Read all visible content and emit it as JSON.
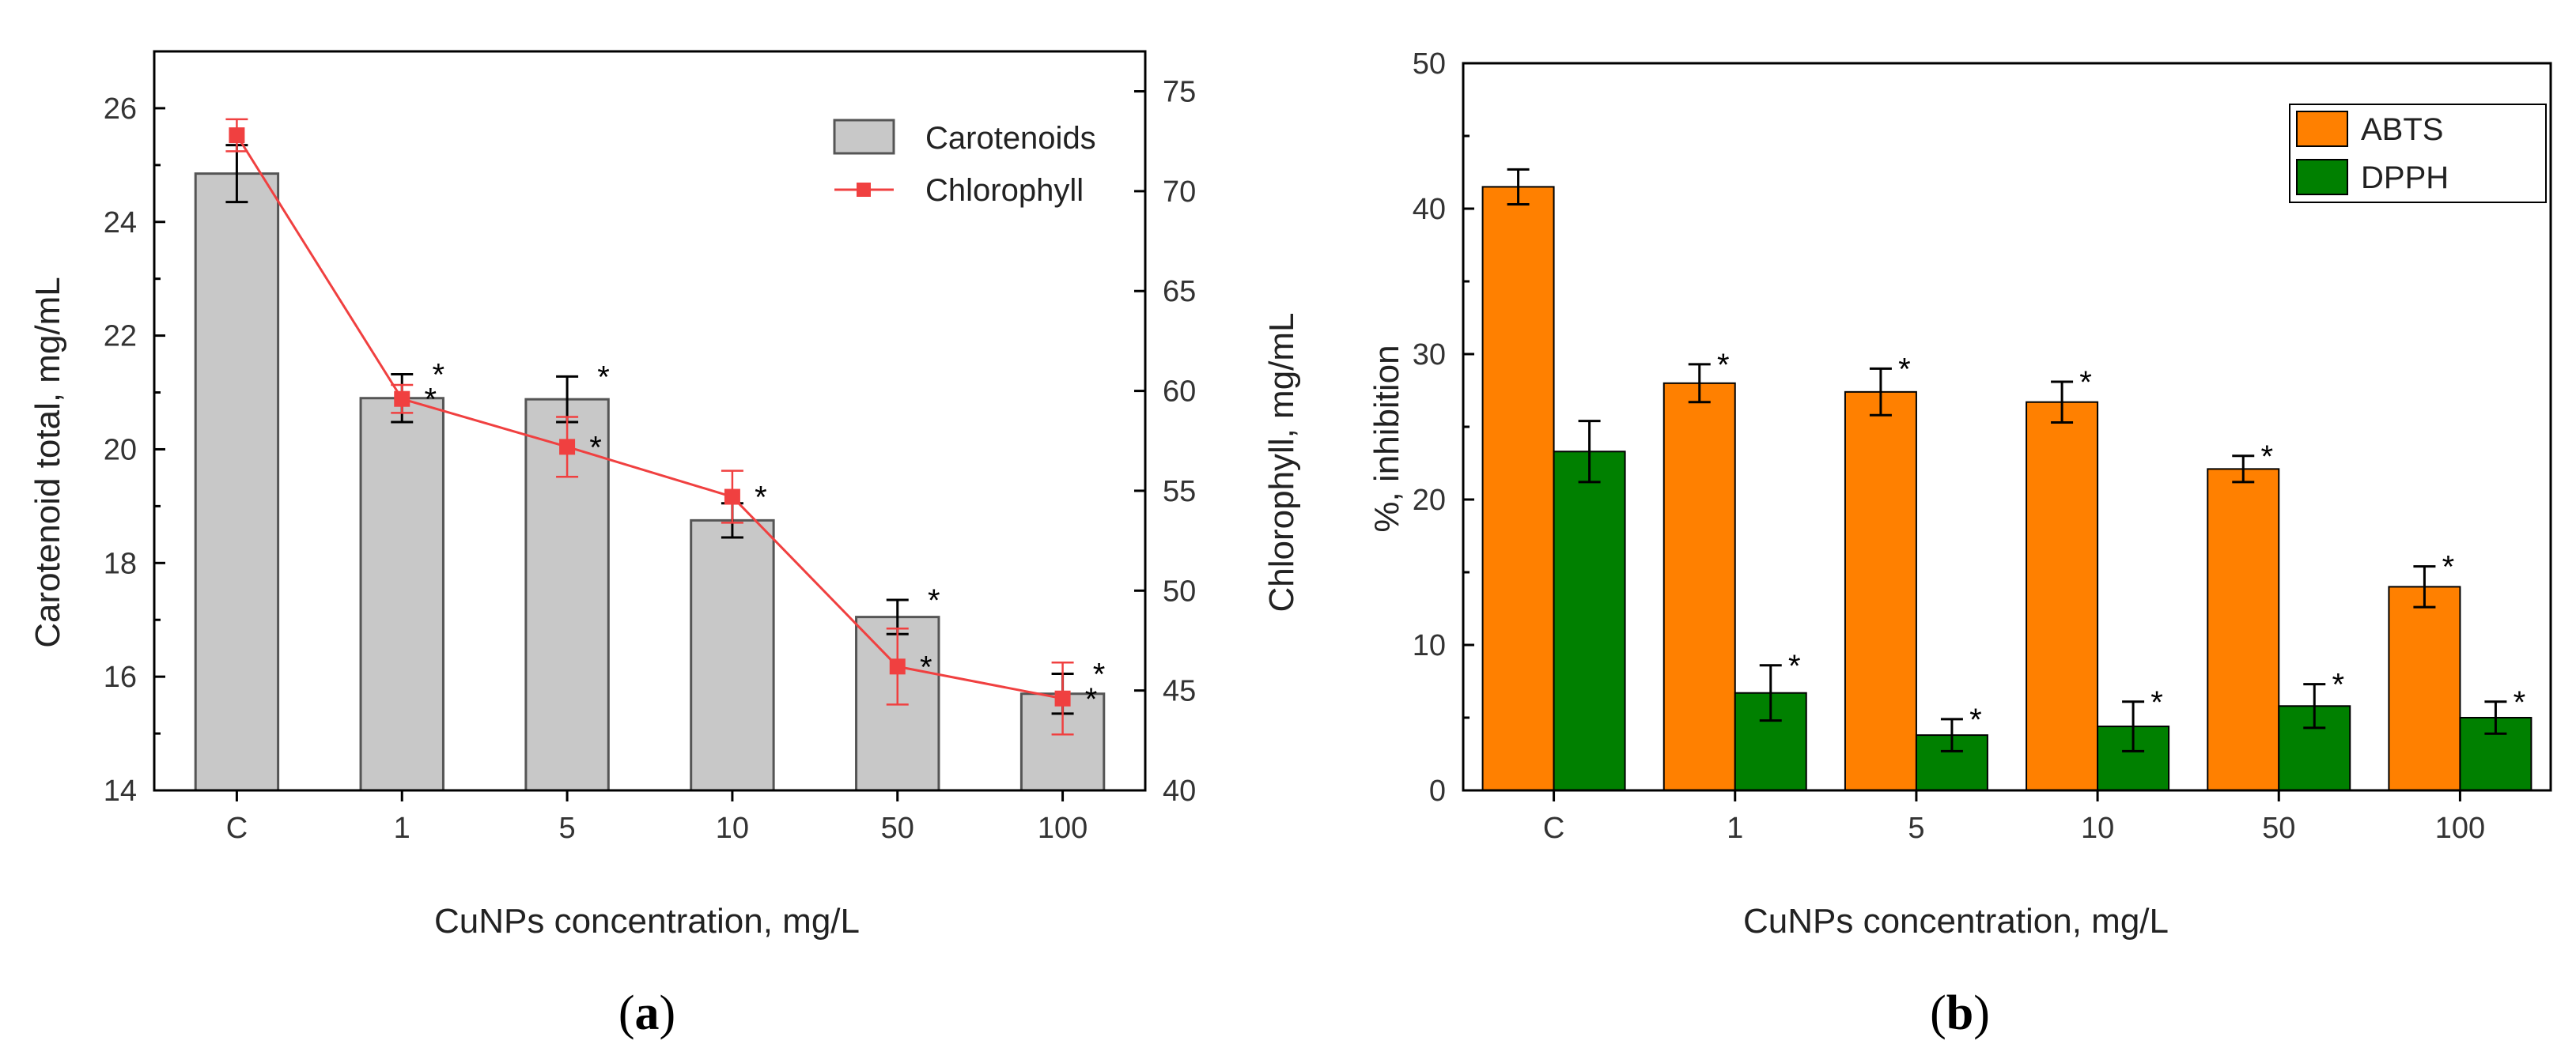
{
  "chart_data": [
    {
      "type": "bar",
      "panel": "a",
      "panel_label_open": "(",
      "panel_label_close": ")",
      "xlabel": "CuNPs concentration, mg/L",
      "ylabel_left": "Carotenoid total, mg/mL",
      "ylabel_right": "Chlorophyll, mg/mL",
      "categories": [
        "C",
        "1",
        "5",
        "10",
        "50",
        "100"
      ],
      "ylim_left": [
        14,
        27
      ],
      "yticks_left": [
        14,
        16,
        18,
        20,
        22,
        24,
        26
      ],
      "ylim_right": [
        40,
        77
      ],
      "yticks_right": [
        40,
        45,
        50,
        55,
        60,
        65,
        70,
        75
      ],
      "legend_position": "top-right",
      "series": [
        {
          "name": "Carotenoids",
          "kind": "bar",
          "axis": "left",
          "color": "#c8c8c8",
          "values": [
            24.85,
            20.9,
            20.88,
            18.75,
            17.05,
            15.7
          ],
          "errors": [
            0.5,
            0.42,
            0.4,
            0.3,
            0.3,
            0.35
          ],
          "significance": [
            "",
            "*",
            "*",
            "",
            "*",
            "*"
          ]
        },
        {
          "name": "Chlorophyll",
          "kind": "line",
          "axis": "right",
          "color": "#f04040",
          "values": [
            72.8,
            59.6,
            57.2,
            54.7,
            46.2,
            44.6
          ],
          "errors": [
            0.8,
            0.7,
            1.5,
            1.3,
            1.9,
            1.8
          ],
          "significance": [
            "",
            "*",
            "*",
            "*",
            "*",
            "*"
          ]
        }
      ]
    },
    {
      "type": "bar",
      "panel": "b",
      "panel_label_open": "(",
      "panel_label_close": ")",
      "xlabel": "CuNPs concentration, mg/L",
      "ylabel": "%, inhibition",
      "categories": [
        "C",
        "1",
        "5",
        "10",
        "50",
        "100"
      ],
      "ylim": [
        0,
        50
      ],
      "yticks": [
        0,
        10,
        20,
        30,
        40,
        50
      ],
      "legend_position": "top-right",
      "series": [
        {
          "name": "ABTS",
          "color": "#ff8000",
          "values": [
            41.5,
            28.0,
            27.4,
            26.7,
            22.1,
            14.0
          ],
          "errors": [
            1.2,
            1.3,
            1.6,
            1.4,
            0.9,
            1.4
          ],
          "significance": [
            "",
            "*",
            "*",
            "*",
            "*",
            "*"
          ]
        },
        {
          "name": "DPPH",
          "color": "#008000",
          "values": [
            23.3,
            6.7,
            3.8,
            4.4,
            5.8,
            5.0
          ],
          "errors": [
            2.1,
            1.9,
            1.1,
            1.7,
            1.5,
            1.1
          ],
          "significance": [
            "",
            "*",
            "*",
            "*",
            "*",
            "*"
          ]
        }
      ]
    }
  ]
}
